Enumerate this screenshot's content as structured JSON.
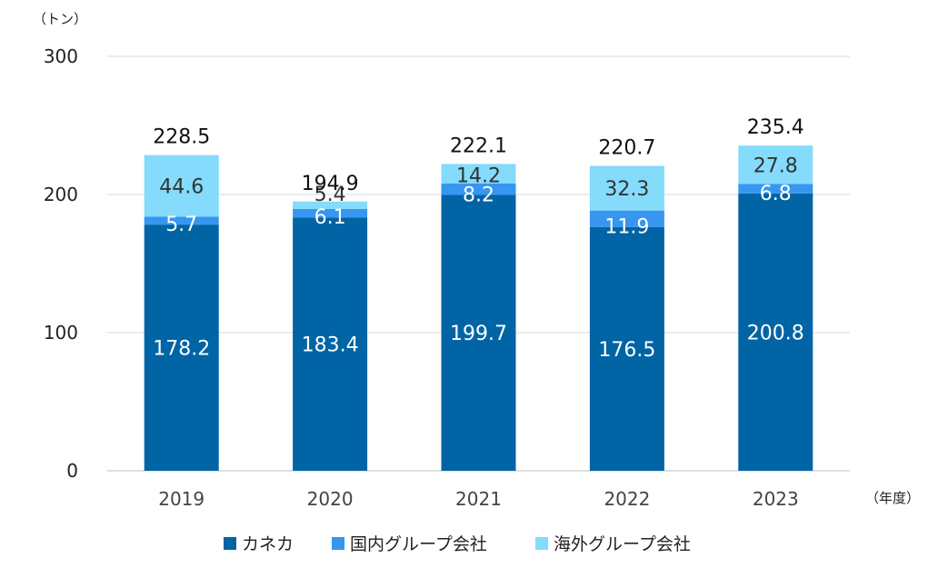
{
  "chart_data": {
    "type": "bar",
    "stacked": true,
    "y_unit": "（トン）",
    "x_unit": "（年度）",
    "categories": [
      "2019",
      "2020",
      "2021",
      "2022",
      "2023"
    ],
    "series": [
      {
        "name": "カネカ",
        "color": "#0064A5",
        "label_color": "#ffffff",
        "values": [
          178.2,
          183.4,
          199.7,
          176.5,
          200.8
        ]
      },
      {
        "name": "国内グループ会社",
        "color": "#3796F0",
        "label_color": "#ffffff",
        "values": [
          5.7,
          6.1,
          8.2,
          11.9,
          6.8
        ]
      },
      {
        "name": "海外グループ会社",
        "color": "#84DBFB",
        "label_color": "#333333",
        "values": [
          44.6,
          5.4,
          14.2,
          32.3,
          27.8
        ]
      }
    ],
    "totals": [
      228.5,
      194.9,
      222.1,
      220.7,
      235.4
    ],
    "ylim": [
      0,
      300
    ],
    "yticks": [
      0,
      100,
      200,
      300
    ],
    "grid": true,
    "legend_position": "bottom"
  }
}
